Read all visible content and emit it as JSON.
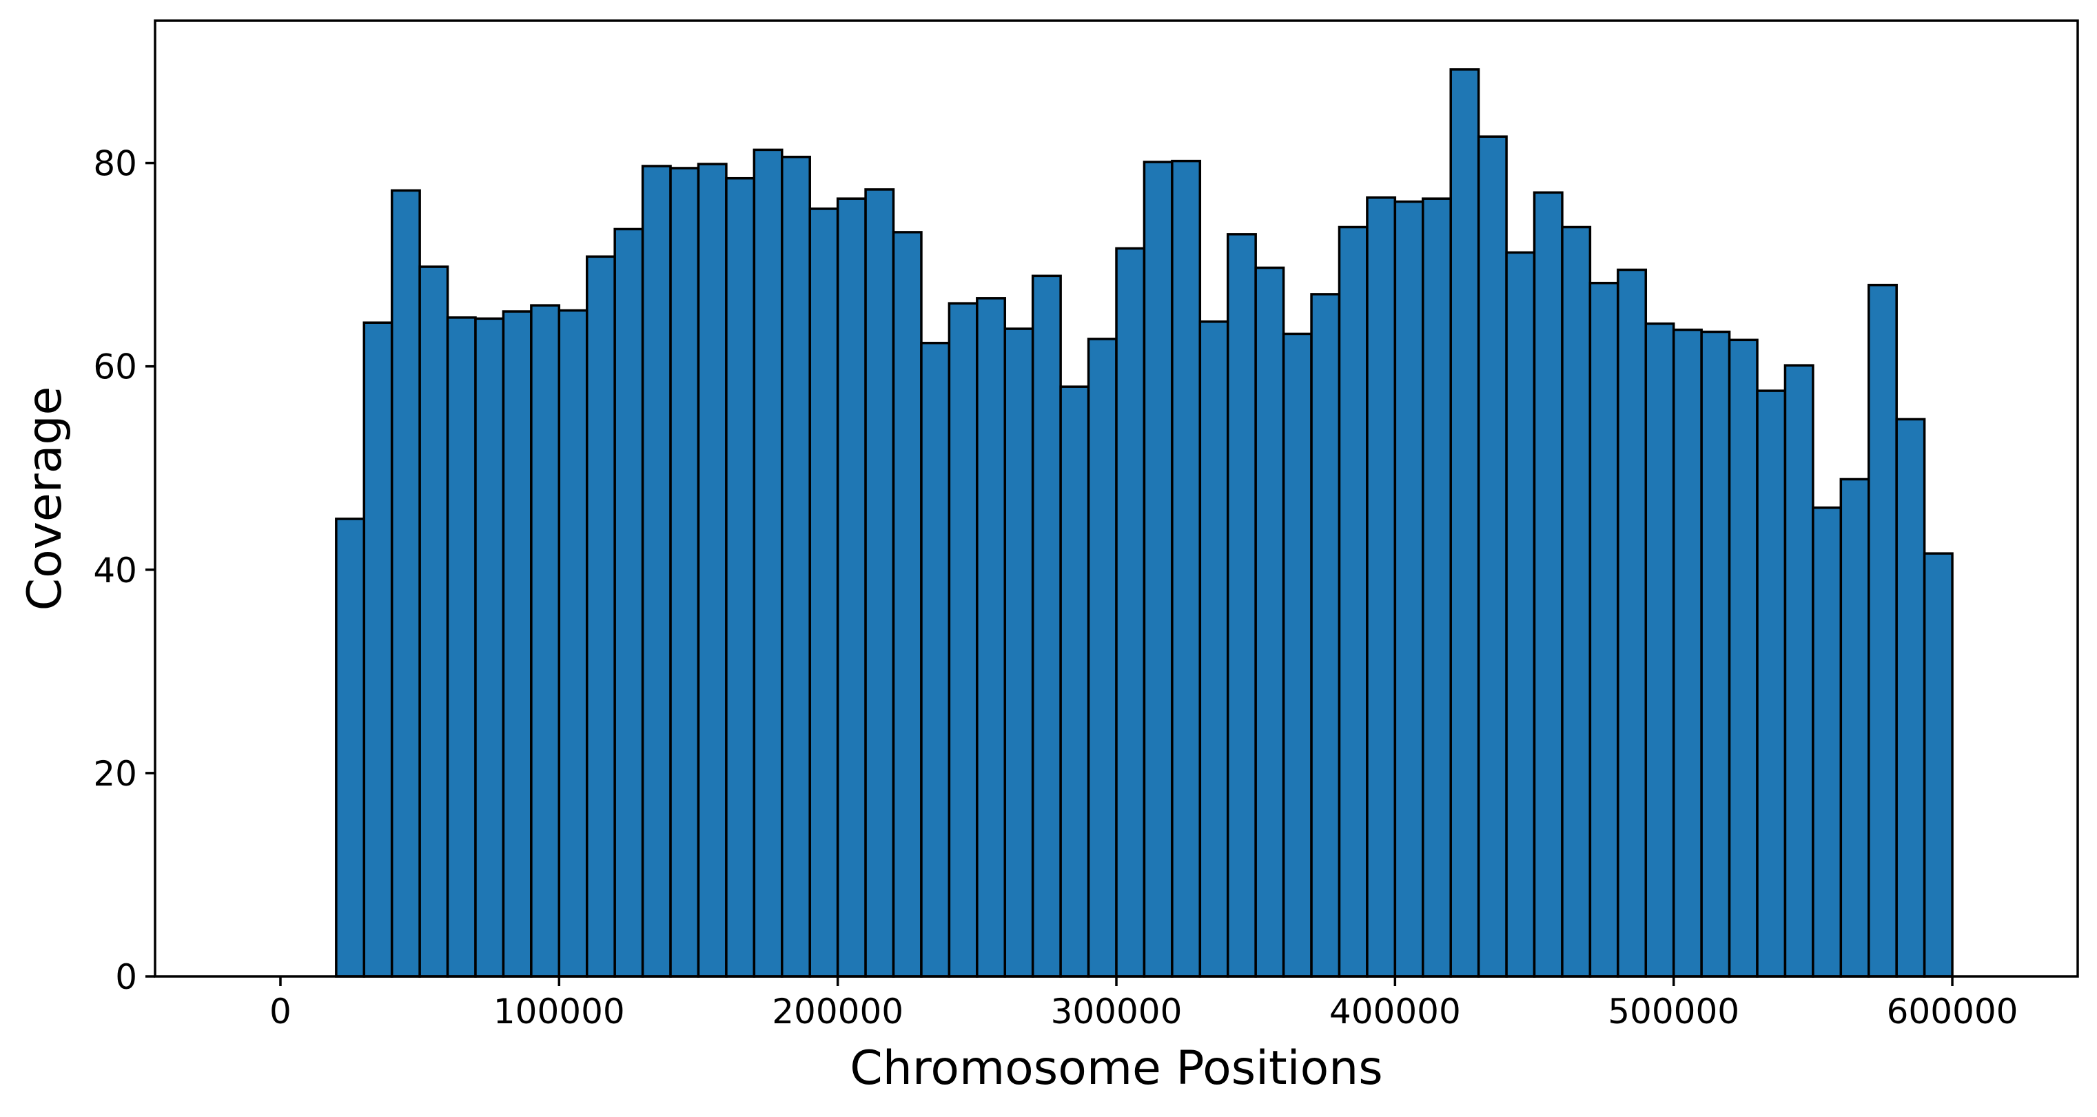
{
  "chart_data": {
    "type": "bar",
    "title": "",
    "xlabel": "Chromosome Positions",
    "ylabel": "Coverage",
    "bar_color": "#1f77b4",
    "edge_color": "#000000",
    "grid": false,
    "legend": "none",
    "xlim": [
      -45000,
      645000
    ],
    "ylim": [
      0,
      94
    ],
    "x_ticks": [
      0,
      100000,
      200000,
      300000,
      400000,
      500000,
      600000
    ],
    "x_tick_labels": [
      "0",
      "100000",
      "200000",
      "300000",
      "400000",
      "500000",
      "600000"
    ],
    "y_ticks": [
      0,
      20,
      40,
      60,
      80
    ],
    "y_tick_labels": [
      "0",
      "20",
      "40",
      "60",
      "80"
    ],
    "bin_width": 10000,
    "x": [
      5000,
      15000,
      25000,
      35000,
      45000,
      55000,
      65000,
      75000,
      85000,
      95000,
      105000,
      115000,
      125000,
      135000,
      145000,
      155000,
      165000,
      175000,
      185000,
      195000,
      205000,
      215000,
      225000,
      235000,
      245000,
      255000,
      265000,
      275000,
      285000,
      295000,
      305000,
      315000,
      325000,
      335000,
      345000,
      355000,
      365000,
      375000,
      385000,
      395000,
      405000,
      415000,
      425000,
      435000,
      445000,
      455000,
      465000,
      475000,
      485000,
      495000,
      505000,
      515000,
      525000,
      535000,
      545000,
      555000,
      565000,
      575000,
      585000,
      595000,
      605000
    ],
    "values": [
      0,
      0,
      45,
      64.3,
      77.3,
      69.8,
      64.8,
      64.7,
      65.4,
      66,
      65.5,
      70.8,
      73.5,
      79.7,
      79.5,
      79.9,
      78.5,
      81.3,
      80.6,
      75.5,
      76.5,
      77.4,
      73.2,
      62.3,
      66.2,
      66.7,
      63.7,
      68.9,
      58,
      62.7,
      71.6,
      80.1,
      80.2,
      64.4,
      73,
      69.7,
      63.2,
      67.1,
      73.7,
      76.6,
      76.2,
      76.5,
      89.2,
      82.6,
      71.2,
      77.1,
      73.7,
      68.2,
      69.5,
      64.2,
      63.6,
      63.4,
      62.6,
      57.6,
      60.1,
      46.1,
      48.9,
      68,
      54.8,
      41.6,
      0
    ]
  }
}
